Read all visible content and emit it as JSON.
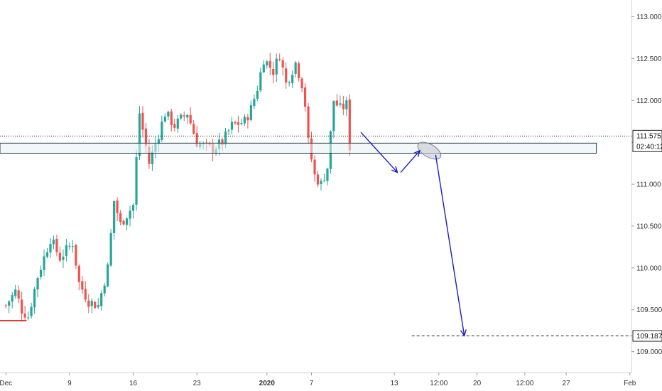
{
  "chart_data": {
    "type": "candlestick",
    "y_range": [
      108.75,
      113.2
    ],
    "y_ticks": [
      "113.000",
      "112.500",
      "112.000",
      "111.500",
      "111.000",
      "110.500",
      "110.000",
      "109.500",
      "109.000"
    ],
    "y_tick_values": [
      113.0,
      112.5,
      112.0,
      111.5,
      111.0,
      110.5,
      110.0,
      109.5,
      109.0
    ],
    "x_ticks": [
      {
        "label": "Dec",
        "bold": false
      },
      {
        "label": "9",
        "bold": false
      },
      {
        "label": "16",
        "bold": false
      },
      {
        "label": "23",
        "bold": false
      },
      {
        "label": "2020",
        "bold": true
      },
      {
        "label": "7",
        "bold": false
      },
      {
        "label": "13",
        "bold": false
      },
      {
        "label": "12:00",
        "bold": false
      },
      {
        "label": "20",
        "bold": false
      },
      {
        "label": "12:00",
        "bold": false
      },
      {
        "label": "27",
        "bold": false
      },
      {
        "label": "Feb",
        "bold": false
      }
    ],
    "x_tick_index": [
      0,
      20,
      40,
      60,
      82,
      96,
      122,
      136,
      148,
      163,
      176,
      196
    ],
    "total_slots": 197,
    "price_anchors": [
      [
        0,
        109.55
      ],
      [
        3,
        109.72
      ],
      [
        5,
        109.5
      ],
      [
        7,
        109.42
      ],
      [
        10,
        109.9
      ],
      [
        14,
        110.35
      ],
      [
        17,
        110.12
      ],
      [
        21,
        110.3
      ],
      [
        23,
        109.82
      ],
      [
        26,
        109.6
      ],
      [
        29,
        109.55
      ],
      [
        32,
        110.0
      ],
      [
        34,
        110.8
      ],
      [
        36,
        110.52
      ],
      [
        40,
        110.75
      ],
      [
        42,
        111.85
      ],
      [
        45,
        111.25
      ],
      [
        48,
        111.6
      ],
      [
        50,
        111.85
      ],
      [
        53,
        111.7
      ],
      [
        57,
        111.85
      ],
      [
        60,
        111.5
      ],
      [
        62,
        111.45
      ],
      [
        65,
        111.42
      ],
      [
        68,
        111.5
      ],
      [
        71,
        111.7
      ],
      [
        75,
        111.75
      ],
      [
        77,
        111.9
      ],
      [
        79,
        112.15
      ],
      [
        81,
        112.5
      ],
      [
        84,
        112.35
      ],
      [
        86,
        112.55
      ],
      [
        88,
        112.2
      ],
      [
        91,
        112.45
      ],
      [
        93,
        112.2
      ],
      [
        94,
        111.95
      ],
      [
        95,
        111.5
      ],
      [
        97,
        111.1
      ],
      [
        99,
        111.0
      ],
      [
        101,
        111.2
      ],
      [
        103,
        112.0
      ],
      [
        105,
        111.9
      ],
      [
        107,
        111.95
      ],
      [
        108,
        111.45
      ]
    ],
    "current_price": "111.575",
    "current_price_value": 111.575,
    "countdown": "02:40:12",
    "target_price": "109.187",
    "target_price_value": 109.187,
    "zone": {
      "low": 111.37,
      "high": 111.49,
      "start_index": 0,
      "end_index": 186
    },
    "support_marker_value": 109.37,
    "colors": {
      "up": "#26a69a",
      "down": "#ef5350",
      "projection": "#1c1cc7",
      "zone_border": "#1f3a44",
      "zone_fill": "#e8f3f5",
      "ellipse_fill": "#c8ccd2",
      "marker": "#e53935",
      "axis_text": "#333333"
    }
  }
}
